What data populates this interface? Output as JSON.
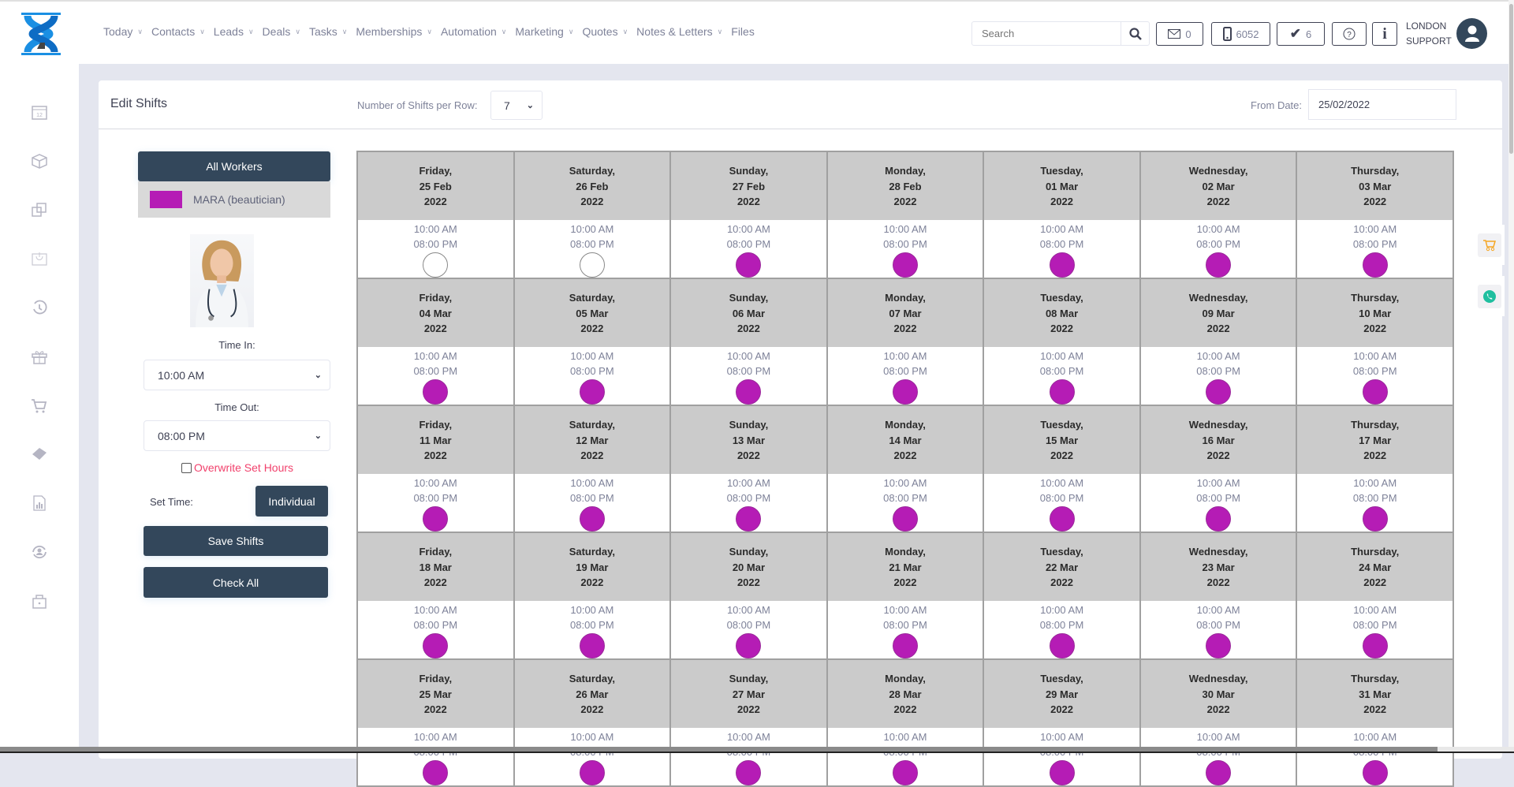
{
  "nav": {
    "items": [
      {
        "label": "Today",
        "dropdown": true
      },
      {
        "label": "Contacts",
        "dropdown": true
      },
      {
        "label": "Leads",
        "dropdown": true
      },
      {
        "label": "Deals",
        "dropdown": true
      },
      {
        "label": "Tasks",
        "dropdown": true
      },
      {
        "label": "Memberships",
        "dropdown": true
      },
      {
        "label": "Automation",
        "dropdown": true
      },
      {
        "label": "Marketing",
        "dropdown": true
      },
      {
        "label": "Quotes",
        "dropdown": true
      },
      {
        "label": "Notes & Letters",
        "dropdown": true
      },
      {
        "label": "Files",
        "dropdown": false
      }
    ]
  },
  "topbar": {
    "search_placeholder": "Search",
    "mail_count": "0",
    "phone_count": "6052",
    "tasks_count": "6",
    "user_line1": "LONDON",
    "user_line2": "SUPPORT"
  },
  "sidebar": {
    "icons": [
      "calendar-icon",
      "box-icon",
      "copy-icon",
      "basket-icon",
      "history-icon",
      "gift-icon",
      "cart-icon",
      "ticket-icon",
      "report-icon",
      "user-sync-icon",
      "lock-icon"
    ]
  },
  "page": {
    "title": "Edit Shifts",
    "shifts_per_row_label": "Number of Shifts per Row:",
    "shifts_per_row_value": "7",
    "from_date_label": "From Date:",
    "from_date_value": "25/02/2022"
  },
  "left_panel": {
    "all_workers_label": "All Workers",
    "worker_name": "MARA (beautician)",
    "worker_color": "#b51cb5",
    "time_in_label": "Time In:",
    "time_in_value": "10:00 AM",
    "time_out_label": "Time Out:",
    "time_out_value": "08:00 PM",
    "overwrite_label": "Overwrite Set Hours",
    "overwrite_checked": false,
    "set_time_label": "Set Time:",
    "individual_label": "Individual",
    "save_label": "Save Shifts",
    "check_all_label": "Check All"
  },
  "colors": {
    "accent": "#33475b",
    "shift_on": "#b51cb5",
    "header_gray": "#cbcbcb"
  },
  "days": [
    {
      "weekday": "Friday,",
      "date": "25 Feb",
      "year": "2022",
      "time_in": "10:00 AM",
      "time_out": "08:00 PM",
      "checked": false
    },
    {
      "weekday": "Saturday,",
      "date": "26 Feb",
      "year": "2022",
      "time_in": "10:00 AM",
      "time_out": "08:00 PM",
      "checked": false
    },
    {
      "weekday": "Sunday,",
      "date": "27 Feb",
      "year": "2022",
      "time_in": "10:00 AM",
      "time_out": "08:00 PM",
      "checked": true
    },
    {
      "weekday": "Monday,",
      "date": "28 Feb",
      "year": "2022",
      "time_in": "10:00 AM",
      "time_out": "08:00 PM",
      "checked": true
    },
    {
      "weekday": "Tuesday,",
      "date": "01 Mar",
      "year": "2022",
      "time_in": "10:00 AM",
      "time_out": "08:00 PM",
      "checked": true
    },
    {
      "weekday": "Wednesday,",
      "date": "02 Mar",
      "year": "2022",
      "time_in": "10:00 AM",
      "time_out": "08:00 PM",
      "checked": true
    },
    {
      "weekday": "Thursday,",
      "date": "03 Mar",
      "year": "2022",
      "time_in": "10:00 AM",
      "time_out": "08:00 PM",
      "checked": true
    },
    {
      "weekday": "Friday,",
      "date": "04 Mar",
      "year": "2022",
      "time_in": "10:00 AM",
      "time_out": "08:00 PM",
      "checked": true
    },
    {
      "weekday": "Saturday,",
      "date": "05 Mar",
      "year": "2022",
      "time_in": "10:00 AM",
      "time_out": "08:00 PM",
      "checked": true
    },
    {
      "weekday": "Sunday,",
      "date": "06 Mar",
      "year": "2022",
      "time_in": "10:00 AM",
      "time_out": "08:00 PM",
      "checked": true
    },
    {
      "weekday": "Monday,",
      "date": "07 Mar",
      "year": "2022",
      "time_in": "10:00 AM",
      "time_out": "08:00 PM",
      "checked": true
    },
    {
      "weekday": "Tuesday,",
      "date": "08 Mar",
      "year": "2022",
      "time_in": "10:00 AM",
      "time_out": "08:00 PM",
      "checked": true
    },
    {
      "weekday": "Wednesday,",
      "date": "09 Mar",
      "year": "2022",
      "time_in": "10:00 AM",
      "time_out": "08:00 PM",
      "checked": true
    },
    {
      "weekday": "Thursday,",
      "date": "10 Mar",
      "year": "2022",
      "time_in": "10:00 AM",
      "time_out": "08:00 PM",
      "checked": true
    },
    {
      "weekday": "Friday,",
      "date": "11 Mar",
      "year": "2022",
      "time_in": "10:00 AM",
      "time_out": "08:00 PM",
      "checked": true
    },
    {
      "weekday": "Saturday,",
      "date": "12 Mar",
      "year": "2022",
      "time_in": "10:00 AM",
      "time_out": "08:00 PM",
      "checked": true
    },
    {
      "weekday": "Sunday,",
      "date": "13 Mar",
      "year": "2022",
      "time_in": "10:00 AM",
      "time_out": "08:00 PM",
      "checked": true
    },
    {
      "weekday": "Monday,",
      "date": "14 Mar",
      "year": "2022",
      "time_in": "10:00 AM",
      "time_out": "08:00 PM",
      "checked": true
    },
    {
      "weekday": "Tuesday,",
      "date": "15 Mar",
      "year": "2022",
      "time_in": "10:00 AM",
      "time_out": "08:00 PM",
      "checked": true
    },
    {
      "weekday": "Wednesday,",
      "date": "16 Mar",
      "year": "2022",
      "time_in": "10:00 AM",
      "time_out": "08:00 PM",
      "checked": true
    },
    {
      "weekday": "Thursday,",
      "date": "17 Mar",
      "year": "2022",
      "time_in": "10:00 AM",
      "time_out": "08:00 PM",
      "checked": true
    },
    {
      "weekday": "Friday,",
      "date": "18 Mar",
      "year": "2022",
      "time_in": "10:00 AM",
      "time_out": "08:00 PM",
      "checked": true
    },
    {
      "weekday": "Saturday,",
      "date": "19 Mar",
      "year": "2022",
      "time_in": "10:00 AM",
      "time_out": "08:00 PM",
      "checked": true
    },
    {
      "weekday": "Sunday,",
      "date": "20 Mar",
      "year": "2022",
      "time_in": "10:00 AM",
      "time_out": "08:00 PM",
      "checked": true
    },
    {
      "weekday": "Monday,",
      "date": "21 Mar",
      "year": "2022",
      "time_in": "10:00 AM",
      "time_out": "08:00 PM",
      "checked": true
    },
    {
      "weekday": "Tuesday,",
      "date": "22 Mar",
      "year": "2022",
      "time_in": "10:00 AM",
      "time_out": "08:00 PM",
      "checked": true
    },
    {
      "weekday": "Wednesday,",
      "date": "23 Mar",
      "year": "2022",
      "time_in": "10:00 AM",
      "time_out": "08:00 PM",
      "checked": true
    },
    {
      "weekday": "Thursday,",
      "date": "24 Mar",
      "year": "2022",
      "time_in": "10:00 AM",
      "time_out": "08:00 PM",
      "checked": true
    },
    {
      "weekday": "Friday,",
      "date": "25 Mar",
      "year": "2022",
      "time_in": "10:00 AM",
      "time_out": "08:00 PM",
      "checked": true
    },
    {
      "weekday": "Saturday,",
      "date": "26 Mar",
      "year": "2022",
      "time_in": "10:00 AM",
      "time_out": "08:00 PM",
      "checked": true
    },
    {
      "weekday": "Sunday,",
      "date": "27 Mar",
      "year": "2022",
      "time_in": "10:00 AM",
      "time_out": "08:00 PM",
      "checked": true
    },
    {
      "weekday": "Monday,",
      "date": "28 Mar",
      "year": "2022",
      "time_in": "10:00 AM",
      "time_out": "08:00 PM",
      "checked": true
    },
    {
      "weekday": "Tuesday,",
      "date": "29 Mar",
      "year": "2022",
      "time_in": "10:00 AM",
      "time_out": "08:00 PM",
      "checked": true
    },
    {
      "weekday": "Wednesday,",
      "date": "30 Mar",
      "year": "2022",
      "time_in": "10:00 AM",
      "time_out": "08:00 PM",
      "checked": true
    },
    {
      "weekday": "Thursday,",
      "date": "31 Mar",
      "year": "2022",
      "time_in": "10:00 AM",
      "time_out": "08:00 PM",
      "checked": true
    }
  ]
}
